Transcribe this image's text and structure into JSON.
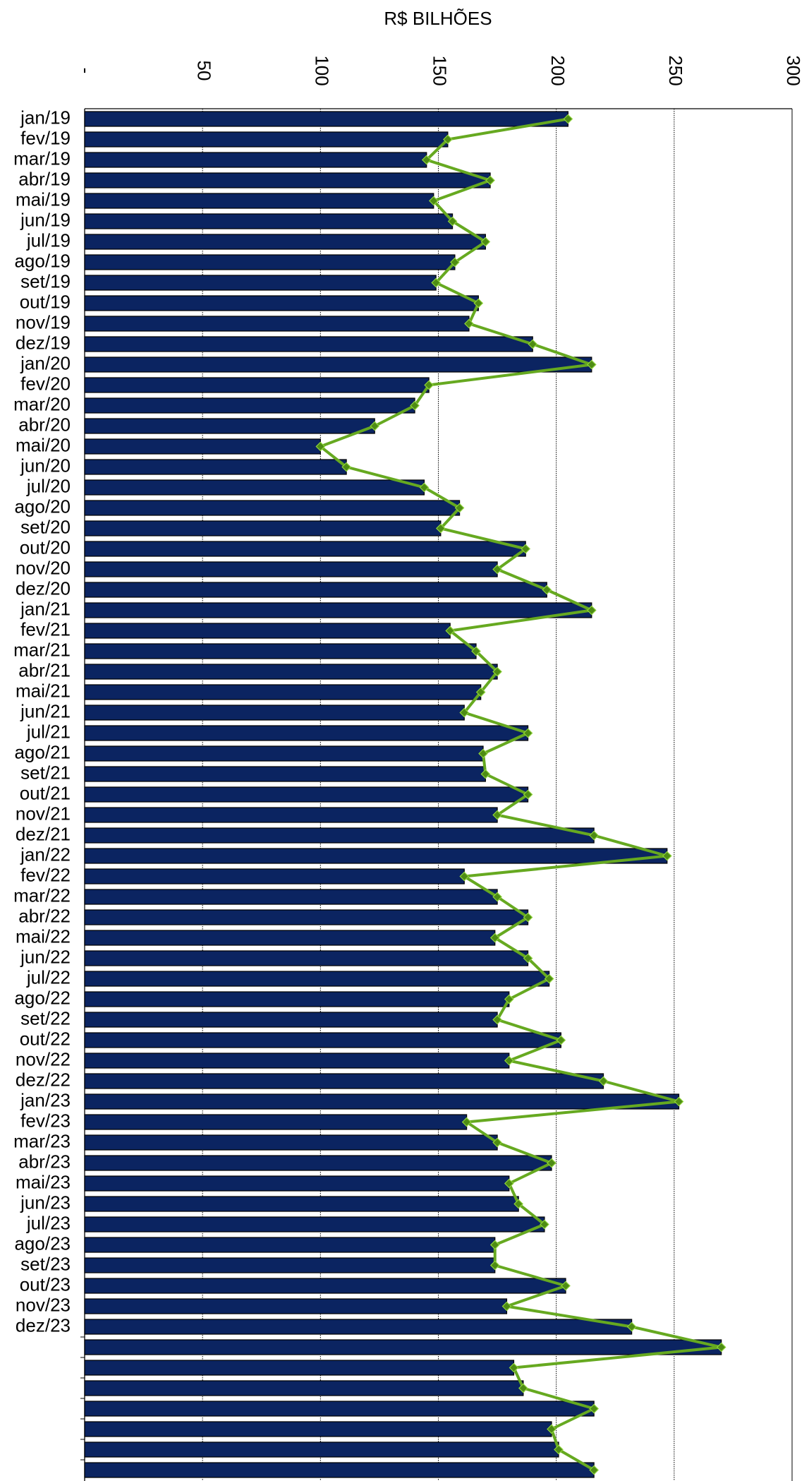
{
  "chart_data": {
    "type": "bar",
    "orientation": "horizontal",
    "x_label": "R$ BILHÕES",
    "categories": [
      "jan/19",
      "fev/19",
      "mar/19",
      "abr/19",
      "mai/19",
      "jun/19",
      "jul/19",
      "ago/19",
      "set/19",
      "out/19",
      "nov/19",
      "dez/19",
      "jan/20",
      "fev/20",
      "mar/20",
      "abr/20",
      "mai/20",
      "jun/20",
      "jul/20",
      "ago/20",
      "set/20",
      "out/20",
      "nov/20",
      "dez/20",
      "jan/21",
      "fev/21",
      "mar/21",
      "abr/21",
      "mai/21",
      "jun/21",
      "jul/21",
      "ago/21",
      "set/21",
      "out/21",
      "nov/21",
      "dez/21",
      "jan/22",
      "fev/22",
      "mar/22",
      "abr/22",
      "mai/22",
      "jun/22",
      "jul/22",
      "ago/22",
      "set/22",
      "out/22",
      "nov/22",
      "dez/22",
      "jan/23",
      "fev/23",
      "mar/23",
      "abr/23",
      "mai/23",
      "jun/23",
      "jul/23",
      "ago/23",
      "set/23",
      "out/23",
      "nov/23",
      "dez/23",
      null,
      null,
      null,
      null,
      null,
      null,
      null
    ],
    "series": [
      {
        "type": "bar",
        "color": "#0b2461",
        "values": [
          205,
          154,
          145,
          172,
          148,
          156,
          170,
          157,
          149,
          167,
          163,
          190,
          215,
          146,
          140,
          123,
          100,
          111,
          144,
          159,
          151,
          187,
          175,
          196,
          215,
          155,
          166,
          175,
          168,
          161,
          188,
          169,
          170,
          188,
          175,
          216,
          247,
          161,
          175,
          188,
          174,
          188,
          197,
          180,
          175,
          202,
          180,
          220,
          252,
          162,
          175,
          198,
          180,
          184,
          195,
          174,
          174,
          204,
          179,
          232,
          270,
          182,
          186,
          216,
          198,
          201,
          216
        ]
      },
      {
        "type": "line",
        "color": "#66a920",
        "values": [
          205,
          154,
          145,
          172,
          148,
          156,
          170,
          157,
          149,
          167,
          163,
          190,
          215,
          146,
          140,
          123,
          100,
          111,
          144,
          159,
          151,
          187,
          175,
          196,
          215,
          155,
          166,
          175,
          168,
          161,
          188,
          169,
          170,
          188,
          175,
          216,
          247,
          161,
          175,
          188,
          174,
          188,
          197,
          180,
          175,
          202,
          180,
          220,
          252,
          162,
          175,
          198,
          180,
          184,
          195,
          174,
          174,
          204,
          179,
          232,
          270,
          182,
          186,
          216,
          198,
          201,
          216
        ]
      }
    ],
    "xlim": [
      0,
      300
    ],
    "xticks": [
      {
        "value": 0,
        "label": "-"
      },
      50,
      100,
      150,
      200,
      250,
      300
    ],
    "grid": true
  }
}
